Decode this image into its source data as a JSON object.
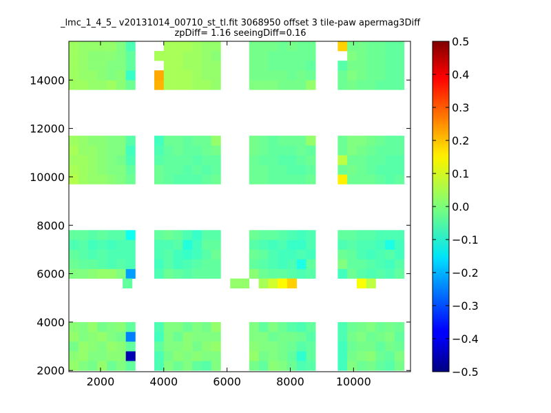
{
  "chart_data": {
    "type": "heatmap",
    "title": "_lmc_1_4_5_ v20131014_00710_st_tl.fit 3068950 offset 3 tile-paw apermag3Diff",
    "subtitle": "zpDiff= 1.16 seeingDiff=0.16",
    "xlim": [
      1000,
      11800
    ],
    "ylim": [
      1950,
      15600
    ],
    "x_ticks": [
      2000,
      4000,
      6000,
      8000,
      10000
    ],
    "y_ticks": [
      2000,
      4000,
      6000,
      8000,
      10000,
      12000,
      14000
    ],
    "colorbar": {
      "colormap": "jet",
      "range": [
        -0.5,
        0.5
      ],
      "ticks": [
        -0.5,
        -0.4,
        -0.3,
        -0.2,
        -0.1,
        0.0,
        0.1,
        0.2,
        0.3,
        0.4,
        0.5
      ],
      "tick_labels": [
        "−0.5",
        "−0.4",
        "−0.3",
        "−0.2",
        "−0.1",
        "0.0",
        "0.1",
        "0.2",
        "0.3",
        "0.4",
        "0.5"
      ]
    },
    "cell_size": [
      300,
      400
    ],
    "column_blocks": [
      {
        "x_start": 1000,
        "cols": 7
      },
      {
        "x_start": 3700,
        "cols": 7
      },
      {
        "x_start": 6700,
        "cols": 7
      },
      {
        "x_start": 9500,
        "cols": 7
      }
    ],
    "row_bands": [
      {
        "y_start": 2000,
        "rows": 5,
        "values": [
          [
            0.02,
            0.0,
            -0.01,
            0.02,
            -0.02,
            0.0,
            -0.03,
            -0.05,
            0.0,
            -0.02,
            0.0,
            -0.03,
            -0.04,
            0.0,
            -0.01,
            -0.03,
            0.01,
            0.0,
            -0.02,
            -0.05,
            -0.04,
            -0.06,
            0.0,
            -0.02,
            -0.01,
            -0.03,
            -0.04,
            -0.01
          ],
          [
            0.01,
            0.02,
            0.0,
            0.0,
            0.01,
            0.01,
            -0.45,
            -0.05,
            -0.01,
            0.01,
            0.0,
            0.01,
            0.0,
            0.0,
            0.02,
            -0.01,
            0.0,
            -0.01,
            -0.03,
            -0.08,
            -0.03,
            -0.06,
            -0.01,
            0.0,
            0.01,
            -0.02,
            -0.03,
            0.0
          ],
          [
            -0.01,
            0.02,
            0.01,
            0.0,
            0.02,
            0.01,
            -0.03,
            -0.03,
            0.0,
            0.0,
            0.01,
            -0.01,
            0.01,
            0.02,
            0.01,
            0.0,
            0.0,
            -0.01,
            -0.02,
            -0.04,
            -0.03,
            -0.06,
            -0.02,
            -0.01,
            -0.01,
            -0.03,
            -0.01,
            -0.02
          ],
          [
            0.02,
            0.0,
            0.01,
            0.02,
            0.0,
            -0.01,
            -0.25,
            -0.06,
            0.0,
            -0.02,
            0.01,
            0.0,
            0.0,
            0.0,
            0.0,
            0.0,
            -0.02,
            -0.01,
            -0.01,
            -0.02,
            -0.04,
            -0.05,
            -0.01,
            0.0,
            -0.02,
            -0.01,
            0.0,
            -0.03
          ],
          [
            0.01,
            0.0,
            0.02,
            -0.01,
            0.0,
            0.01,
            -0.03,
            -0.05,
            0.0,
            0.0,
            -0.02,
            0.0,
            -0.01,
            0.02,
            0.0,
            -0.03,
            0.0,
            -0.02,
            -0.04,
            -0.05,
            -0.03,
            -0.05,
            -0.02,
            -0.01,
            0.0,
            -0.02,
            -0.01,
            -0.02
          ]
        ]
      },
      {
        "y_start": 5800,
        "rows": 5,
        "values": [
          [
            0.0,
            0.0,
            0.01,
            0.02,
            0.02,
            0.0,
            -0.22,
            -0.05,
            -0.02,
            -0.03,
            -0.04,
            -0.03,
            -0.03,
            -0.03,
            0.01,
            -0.02,
            -0.03,
            -0.03,
            -0.04,
            -0.05,
            -0.04,
            -0.06,
            -0.02,
            -0.04,
            -0.05,
            -0.04,
            -0.05,
            -0.03
          ],
          [
            -0.02,
            -0.03,
            -0.03,
            -0.04,
            -0.05,
            -0.04,
            -0.05,
            -0.06,
            -0.04,
            -0.06,
            -0.05,
            -0.04,
            -0.03,
            -0.03,
            -0.03,
            -0.04,
            -0.05,
            -0.06,
            -0.05,
            -0.1,
            -0.03,
            0.0,
            -0.03,
            -0.03,
            -0.04,
            -0.05,
            -0.06,
            -0.04
          ],
          [
            -0.03,
            -0.04,
            -0.05,
            -0.04,
            -0.05,
            -0.05,
            -0.05,
            -0.05,
            -0.04,
            -0.06,
            -0.07,
            -0.06,
            -0.04,
            -0.02,
            -0.02,
            -0.03,
            -0.05,
            -0.06,
            -0.06,
            -0.05,
            -0.06,
            -0.02,
            -0.03,
            -0.05,
            -0.06,
            -0.05,
            -0.04,
            -0.06
          ],
          [
            -0.05,
            -0.04,
            -0.06,
            -0.05,
            -0.06,
            -0.05,
            -0.05,
            -0.05,
            -0.05,
            -0.04,
            -0.09,
            -0.06,
            -0.03,
            -0.03,
            -0.04,
            -0.05,
            -0.06,
            -0.05,
            -0.07,
            -0.07,
            -0.05,
            -0.05,
            -0.04,
            -0.05,
            -0.05,
            -0.06,
            -0.1,
            -0.06
          ],
          [
            -0.03,
            -0.03,
            -0.04,
            -0.03,
            -0.04,
            -0.04,
            -0.11,
            -0.03,
            -0.02,
            -0.03,
            -0.05,
            -0.07,
            -0.04,
            -0.04,
            -0.02,
            -0.03,
            -0.03,
            -0.04,
            -0.05,
            -0.06,
            -0.05,
            -0.03,
            -0.03,
            -0.04,
            -0.04,
            -0.05,
            -0.05,
            -0.05
          ]
        ]
      },
      {
        "y_start": 9700,
        "rows": 5,
        "values": [
          [
            0.05,
            0.03,
            0.02,
            0.02,
            0.01,
            0.0,
            -0.02,
            -0.02,
            -0.03,
            -0.04,
            -0.04,
            -0.04,
            -0.03,
            -0.02,
            -0.02,
            -0.02,
            -0.03,
            -0.03,
            -0.03,
            -0.03,
            -0.02,
            0.14,
            -0.02,
            -0.02,
            -0.02,
            -0.03,
            -0.04,
            -0.03
          ],
          [
            0.04,
            0.03,
            0.02,
            0.01,
            0.0,
            0.0,
            -0.03,
            -0.02,
            -0.03,
            -0.03,
            -0.04,
            -0.03,
            -0.04,
            -0.03,
            -0.02,
            -0.02,
            -0.03,
            -0.03,
            -0.04,
            -0.04,
            -0.03,
            -0.02,
            -0.01,
            -0.02,
            -0.03,
            -0.04,
            -0.04,
            -0.04
          ],
          [
            0.03,
            0.03,
            0.02,
            0.01,
            0.0,
            -0.01,
            -0.05,
            -0.04,
            -0.03,
            -0.03,
            -0.03,
            -0.04,
            -0.03,
            -0.03,
            -0.02,
            -0.03,
            -0.03,
            -0.04,
            -0.04,
            -0.03,
            -0.02,
            0.06,
            -0.02,
            -0.02,
            -0.03,
            -0.03,
            -0.04,
            -0.04
          ],
          [
            0.04,
            0.02,
            0.02,
            0.01,
            0.0,
            0.0,
            -0.06,
            -0.05,
            -0.03,
            -0.02,
            -0.03,
            -0.03,
            -0.02,
            -0.01,
            -0.01,
            -0.02,
            -0.03,
            -0.03,
            -0.03,
            -0.02,
            -0.03,
            -0.02,
            0.0,
            -0.01,
            -0.02,
            -0.03,
            -0.03,
            -0.03
          ],
          [
            0.03,
            0.02,
            0.01,
            0.01,
            0.0,
            0.0,
            -0.04,
            -0.06,
            -0.02,
            -0.02,
            -0.03,
            -0.02,
            -0.02,
            0.02,
            -0.01,
            -0.02,
            -0.03,
            -0.02,
            -0.02,
            -0.02,
            0.02,
            -0.02,
            0.0,
            0.0,
            -0.01,
            -0.02,
            -0.03,
            -0.03
          ]
        ]
      },
      {
        "y_start": 13600,
        "rows": 5,
        "values": [
          [
            0.03,
            0.03,
            0.02,
            0.02,
            0.03,
            0.01,
            -0.02,
            0.2,
            0.04,
            0.04,
            0.04,
            0.03,
            0.03,
            0.02,
            0.0,
            0.0,
            0.0,
            -0.01,
            -0.01,
            -0.01,
            0.02,
            -0.02,
            -0.01,
            -0.02,
            -0.02,
            -0.03,
            -0.03,
            -0.03
          ],
          [
            0.03,
            0.02,
            0.02,
            0.01,
            0.0,
            0.01,
            -0.07,
            0.21,
            0.04,
            0.04,
            0.04,
            0.03,
            0.02,
            0.02,
            -0.01,
            -0.01,
            -0.01,
            -0.01,
            -0.02,
            -0.01,
            -0.02,
            -0.02,
            0.0,
            -0.01,
            -0.02,
            -0.02,
            -0.03,
            -0.03
          ],
          [
            0.03,
            0.02,
            0.01,
            0.01,
            0.0,
            0.0,
            -0.03,
            null,
            0.04,
            0.04,
            0.03,
            0.03,
            0.02,
            0.02,
            -0.01,
            -0.01,
            -0.02,
            -0.02,
            -0.02,
            -0.02,
            -0.03,
            -0.04,
            -0.01,
            -0.01,
            -0.02,
            -0.02,
            -0.03,
            -0.03
          ],
          [
            0.03,
            0.02,
            0.01,
            0.01,
            0.01,
            0.0,
            -0.03,
            0.04,
            0.04,
            0.04,
            0.03,
            0.03,
            0.02,
            0.01,
            -0.01,
            -0.01,
            -0.02,
            -0.02,
            -0.02,
            -0.02,
            -0.02,
            null,
            0.0,
            -0.01,
            -0.02,
            -0.02,
            -0.03,
            -0.03
          ],
          [
            0.03,
            0.02,
            0.02,
            0.02,
            0.02,
            0.0,
            -0.05,
            null,
            0.04,
            0.04,
            0.04,
            0.03,
            0.02,
            0.02,
            -0.01,
            -0.01,
            -0.01,
            -0.02,
            -0.01,
            -0.02,
            -0.02,
            0.17,
            -0.01,
            -0.01,
            -0.02,
            -0.02,
            -0.03,
            -0.03
          ]
        ]
      }
    ],
    "outlier_cells": [
      {
        "x": 2700,
        "y": 5400,
        "value": -0.03
      },
      {
        "x": 6100,
        "y": 5400,
        "value": 0.02
      },
      {
        "x": 6400,
        "y": 5400,
        "value": 0.02
      },
      {
        "x": 7000,
        "y": 5400,
        "value": 0.04
      },
      {
        "x": 7300,
        "y": 5400,
        "value": 0.08
      },
      {
        "x": 7600,
        "y": 5400,
        "value": 0.13
      },
      {
        "x": 7900,
        "y": 5400,
        "value": 0.17
      },
      {
        "x": 10100,
        "y": 5400,
        "value": 0.12
      },
      {
        "x": 10400,
        "y": 5400,
        "value": 0.06
      }
    ]
  }
}
